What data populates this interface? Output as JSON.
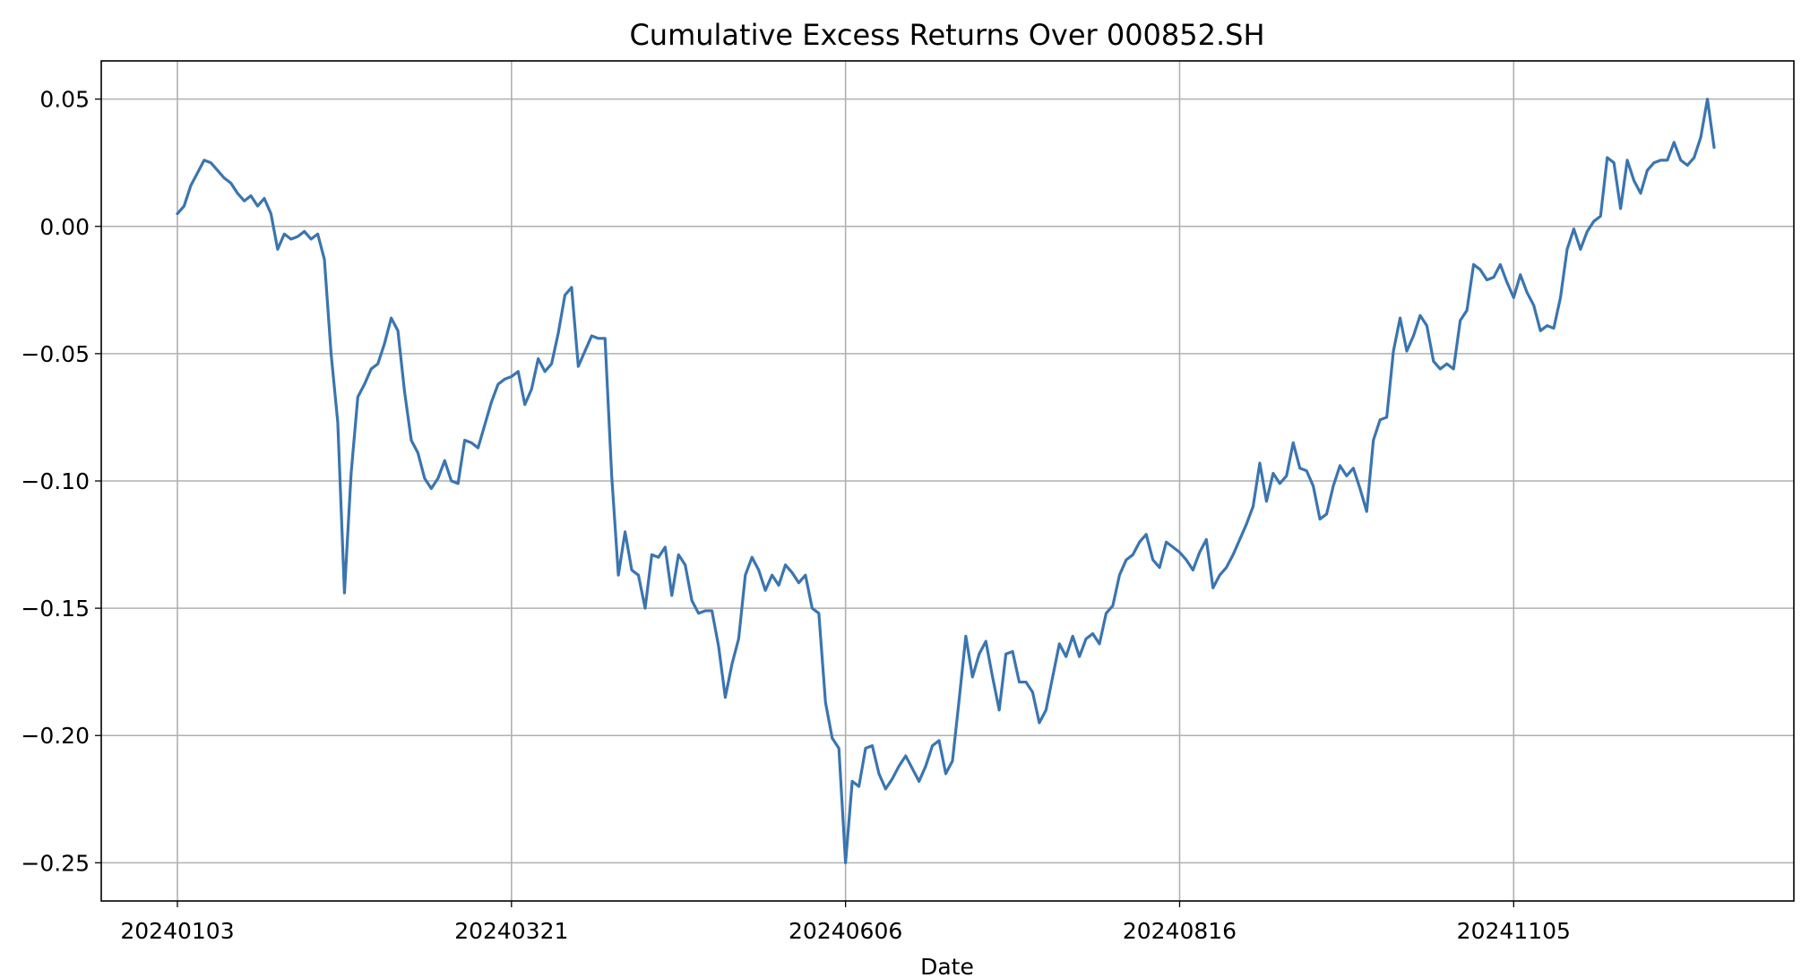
{
  "chart_data": {
    "type": "line",
    "title": "Cumulative Excess Returns Over 000852.SH",
    "xlabel": "Date",
    "ylabel": "",
    "grid": true,
    "ylim": [
      -0.265,
      0.065
    ],
    "yticks": [
      0.05,
      0.0,
      -0.05,
      -0.1,
      -0.15,
      -0.2,
      -0.25
    ],
    "ytick_labels": [
      "0.05",
      "0.00",
      "−0.05",
      "−0.10",
      "−0.15",
      "−0.20",
      "−0.25"
    ],
    "xticks": [
      {
        "label": "20240103",
        "index": 0
      },
      {
        "label": "20240321",
        "index": 50
      },
      {
        "label": "20240606",
        "index": 100
      },
      {
        "label": "20240816",
        "index": 150
      },
      {
        "label": "20241105",
        "index": 200
      }
    ],
    "series": [
      {
        "color": "#3a75b0",
        "values": [
          0.005,
          0.008,
          0.016,
          0.021,
          0.026,
          0.025,
          0.022,
          0.019,
          0.017,
          0.013,
          0.01,
          0.012,
          0.008,
          0.011,
          0.005,
          -0.009,
          -0.003,
          -0.005,
          -0.004,
          -0.002,
          -0.005,
          -0.003,
          -0.013,
          -0.05,
          -0.077,
          -0.144,
          -0.097,
          -0.067,
          -0.062,
          -0.056,
          -0.054,
          -0.046,
          -0.036,
          -0.041,
          -0.065,
          -0.084,
          -0.089,
          -0.099,
          -0.103,
          -0.099,
          -0.092,
          -0.1,
          -0.101,
          -0.084,
          -0.085,
          -0.087,
          -0.078,
          -0.069,
          -0.062,
          -0.06,
          -0.059,
          -0.057,
          -0.07,
          -0.064,
          -0.052,
          -0.057,
          -0.054,
          -0.042,
          -0.027,
          -0.024,
          -0.055,
          -0.049,
          -0.043,
          -0.044,
          -0.044,
          -0.098,
          -0.137,
          -0.12,
          -0.135,
          -0.137,
          -0.15,
          -0.129,
          -0.13,
          -0.126,
          -0.145,
          -0.129,
          -0.133,
          -0.147,
          -0.152,
          -0.151,
          -0.151,
          -0.165,
          -0.185,
          -0.172,
          -0.162,
          -0.137,
          -0.13,
          -0.135,
          -0.143,
          -0.137,
          -0.141,
          -0.133,
          -0.136,
          -0.14,
          -0.137,
          -0.15,
          -0.152,
          -0.187,
          -0.201,
          -0.205,
          -0.25,
          -0.218,
          -0.22,
          -0.205,
          -0.204,
          -0.215,
          -0.221,
          -0.217,
          -0.212,
          -0.208,
          -0.213,
          -0.218,
          -0.212,
          -0.204,
          -0.202,
          -0.215,
          -0.21,
          -0.186,
          -0.161,
          -0.177,
          -0.168,
          -0.163,
          -0.177,
          -0.19,
          -0.168,
          -0.167,
          -0.179,
          -0.179,
          -0.183,
          -0.195,
          -0.19,
          -0.177,
          -0.164,
          -0.169,
          -0.161,
          -0.169,
          -0.162,
          -0.16,
          -0.164,
          -0.152,
          -0.149,
          -0.137,
          -0.131,
          -0.129,
          -0.124,
          -0.121,
          -0.131,
          -0.134,
          -0.124,
          -0.126,
          -0.128,
          -0.131,
          -0.135,
          -0.128,
          -0.123,
          -0.142,
          -0.137,
          -0.134,
          -0.129,
          -0.123,
          -0.117,
          -0.11,
          -0.093,
          -0.108,
          -0.097,
          -0.101,
          -0.098,
          -0.085,
          -0.095,
          -0.096,
          -0.102,
          -0.115,
          -0.113,
          -0.102,
          -0.094,
          -0.098,
          -0.095,
          -0.103,
          -0.112,
          -0.084,
          -0.076,
          -0.075,
          -0.049,
          -0.036,
          -0.049,
          -0.043,
          -0.035,
          -0.039,
          -0.053,
          -0.056,
          -0.054,
          -0.056,
          -0.037,
          -0.033,
          -0.015,
          -0.017,
          -0.021,
          -0.02,
          -0.015,
          -0.022,
          -0.028,
          -0.019,
          -0.026,
          -0.031,
          -0.041,
          -0.039,
          -0.04,
          -0.028,
          -0.009,
          -0.001,
          -0.009,
          -0.002,
          0.002,
          0.004,
          0.027,
          0.025,
          0.007,
          0.026,
          0.018,
          0.013,
          0.022,
          0.025,
          0.026,
          0.026,
          0.033,
          0.026,
          0.024,
          0.027,
          0.035,
          0.05,
          0.031
        ]
      }
    ]
  }
}
